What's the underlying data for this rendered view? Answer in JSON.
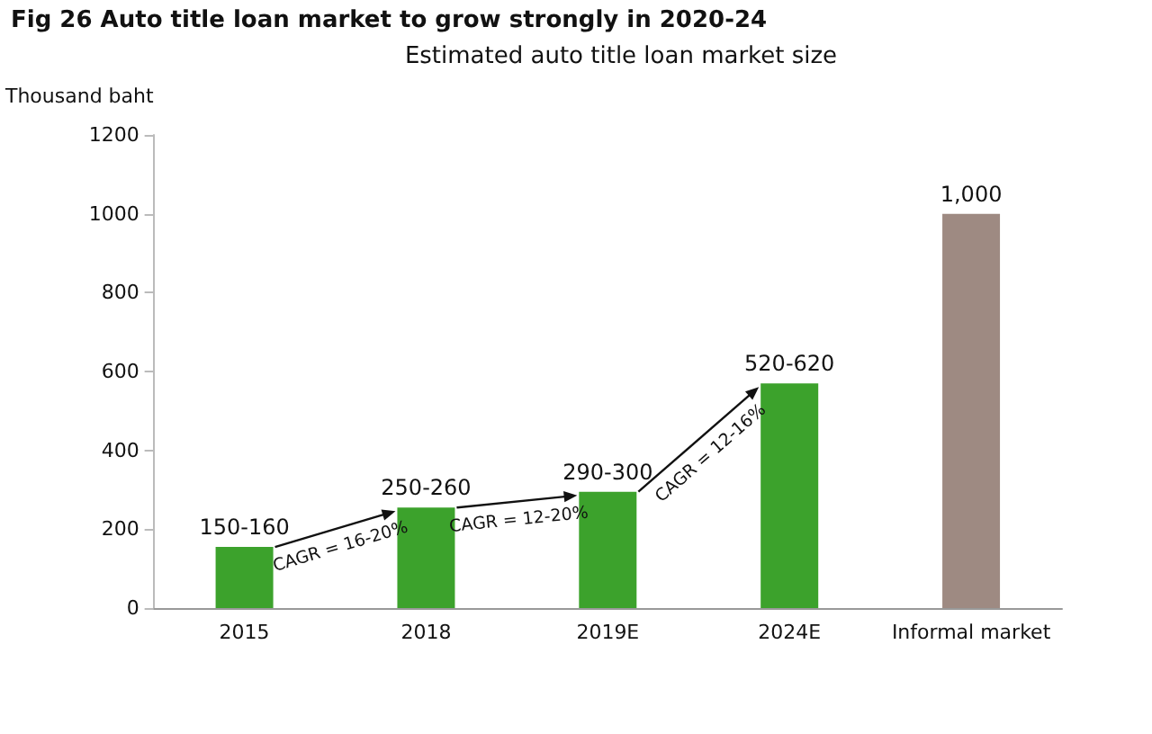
{
  "chart_data": {
    "type": "bar",
    "title": "Fig 26  Auto title loan market to grow strongly in 2020-24",
    "subtitle": "Estimated auto title loan market size",
    "ylabel": "Thousand baht",
    "categories": [
      "2015",
      "2018",
      "2019E",
      "2024E",
      "Informal market"
    ],
    "values": [
      155,
      255,
      295,
      570,
      1000
    ],
    "colors": [
      "#3ca22c",
      "#3ca22c",
      "#3ca22c",
      "#3ca22c",
      "#9e8a82"
    ],
    "value_labels": [
      "150-160",
      "250-260",
      "290-300",
      "520-620",
      "1,000"
    ],
    "annotations": [
      "CAGR = 16-20%",
      "CAGR = 12-20%",
      "CAGR = 12-16%"
    ],
    "ylim": [
      0,
      1200
    ],
    "yticks": [
      0,
      200,
      400,
      600,
      800,
      1000,
      1200
    ],
    "grid": false
  }
}
